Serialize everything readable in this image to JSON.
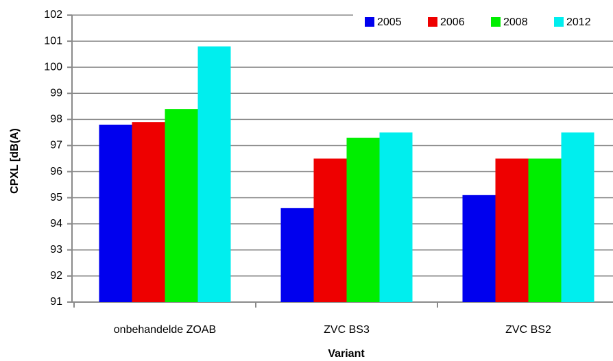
{
  "chart_data": {
    "type": "bar",
    "y_label": "CPXL [dB(A)",
    "x_label": "Variant",
    "categories": [
      "onbehandelde ZOAB",
      "ZVC BS3",
      "ZVC BS2"
    ],
    "series": [
      {
        "name": "2005",
        "color": "#0000ee",
        "values": [
          97.8,
          94.6,
          95.1
        ]
      },
      {
        "name": "2006",
        "color": "#ee0000",
        "values": [
          97.9,
          96.5,
          96.5
        ]
      },
      {
        "name": "2008",
        "color": "#00ee00",
        "values": [
          98.4,
          97.3,
          96.5
        ]
      },
      {
        "name": "2012",
        "color": "#00eeee",
        "values": [
          100.8,
          97.5,
          97.5
        ]
      }
    ],
    "ylim": [
      91,
      102
    ],
    "yticks": [
      91,
      92,
      93,
      94,
      95,
      96,
      97,
      98,
      99,
      100,
      101,
      102
    ],
    "grid": true,
    "legend": "top-right"
  }
}
